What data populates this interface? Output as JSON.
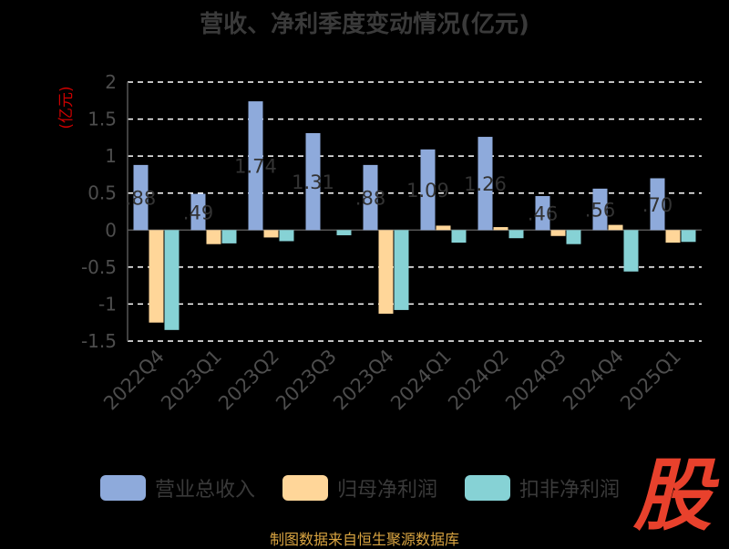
{
  "header": {
    "title": "营收、净利季度变动情况(亿元)"
  },
  "footer": {
    "source": "制图数据来自恒生聚源数据库",
    "logo_text": "股"
  },
  "colors": {
    "revenue": "#8eaadb",
    "net_profit": "#ffd699",
    "deducted": "#86d2d5",
    "axis_text": "#4d4d4d",
    "unit_text": "#cc0000",
    "grid": "#ffffff"
  },
  "chart_data": {
    "type": "bar",
    "ylabel": "(亿元)",
    "ylim": [
      -1.5,
      2
    ],
    "yticks": [
      "2",
      "1.5",
      "1",
      "0.5",
      "0",
      "-0.5",
      "-1",
      "-1.5"
    ],
    "ytick_values": [
      2,
      1.5,
      1,
      0.5,
      0,
      -0.5,
      -1,
      -1.5
    ],
    "categories": [
      "2022Q4",
      "2023Q1",
      "2023Q2",
      "2023Q3",
      "2023Q4",
      "2024Q1",
      "2024Q2",
      "2024Q3",
      "2024Q4",
      "2025Q1"
    ],
    "series": [
      {
        "name": "营业总收入",
        "values": [
          0.88,
          0.49,
          1.74,
          1.31,
          0.88,
          1.09,
          1.26,
          0.46,
          0.56,
          0.7
        ],
        "labels": [
          ".88",
          ".49",
          "1.74",
          "1.31",
          ".88",
          "1.09",
          "1.26",
          ".46",
          ".56",
          ".70"
        ]
      },
      {
        "name": "归母净利润",
        "values": [
          -1.25,
          -0.19,
          -0.1,
          0.0,
          -1.13,
          0.06,
          0.04,
          -0.08,
          0.07,
          -0.17
        ]
      },
      {
        "name": "扣非净利润",
        "values": [
          -1.35,
          -0.18,
          -0.15,
          -0.07,
          -1.08,
          -0.17,
          -0.11,
          -0.19,
          -0.56,
          -0.16
        ]
      }
    ],
    "grid": true,
    "legend": "bottom"
  }
}
